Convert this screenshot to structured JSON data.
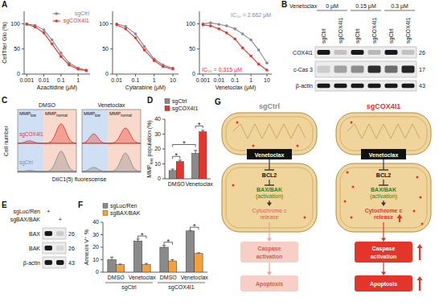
{
  "panel_letters": [
    "A",
    "B",
    "C",
    "D",
    "E",
    "F",
    "G"
  ],
  "chart_data": [
    {
      "type": "line",
      "x_label": "Azacitidine (μM)",
      "y_label": "CellTiter Glo (%)",
      "log": "x",
      "marker": "circle",
      "legend": "top-right",
      "x": [
        0.001,
        0.003,
        0.01,
        0.03,
        0.1,
        0.3,
        1,
        3
      ],
      "series": [
        {
          "name": "sgCtrl",
          "color": "#8a8a8a",
          "values": [
            100,
            97,
            88,
            68,
            42,
            22,
            12,
            8
          ]
        },
        {
          "name": "sgCOX4I1",
          "color": "#e8332a",
          "values": [
            99,
            94,
            82,
            60,
            35,
            18,
            10,
            7
          ]
        }
      ],
      "xlim": [
        0.0007,
        5
      ],
      "xticks": [
        0.001,
        0.01,
        0.1,
        1
      ],
      "ylim": [
        0,
        125
      ],
      "yticks": [
        0,
        50,
        100
      ]
    },
    {
      "type": "line",
      "x_label": "Cytarabine (μM)",
      "log": "x",
      "marker": "circle",
      "x": [
        0.01,
        0.03,
        0.1,
        0.3,
        1,
        3,
        10
      ],
      "series": [
        {
          "color": "#8a8a8a",
          "values": [
            100,
            95,
            80,
            55,
            30,
            18,
            12
          ]
        },
        {
          "color": "#e8332a",
          "values": [
            98,
            90,
            72,
            48,
            27,
            15,
            10
          ]
        }
      ],
      "xlim": [
        0.006,
        20
      ],
      "xticks": [
        0.01,
        0.1,
        1,
        10
      ],
      "ylim": [
        0,
        125
      ],
      "yticks": [
        0,
        50,
        100
      ]
    },
    {
      "type": "line",
      "x_label": "Venetoclax (μM)",
      "log": "x",
      "marker": "circle",
      "x": [
        0.001,
        0.003,
        0.01,
        0.03,
        0.1,
        0.3,
        1,
        3,
        10
      ],
      "series": [
        {
          "color": "#8a8a8a",
          "values": [
            100,
            102,
            99,
            96,
            90,
            80,
            68,
            48,
            22
          ]
        },
        {
          "color": "#e8332a",
          "values": [
            98,
            96,
            90,
            82,
            70,
            52,
            36,
            20,
            8
          ]
        }
      ],
      "xlim": [
        0.0006,
        20
      ],
      "xticks": [
        0.001,
        0.01,
        0.1,
        1,
        10
      ],
      "ylim": [
        0,
        125
      ],
      "yticks": [
        0,
        50,
        100
      ],
      "annotations": [
        {
          "text": "IC₅₀ = 2.662 μM",
          "series": 0
        },
        {
          "text": "IC₅₀ = 0.315 μM",
          "series": 1
        }
      ]
    },
    {
      "type": "bar",
      "y_label": [
        "MMP",
        "low",
        " population (%)"
      ],
      "categories": [
        "DMSO",
        "Venetoclax"
      ],
      "series": [
        {
          "name": "sgCtrl",
          "color": "#8a8a8a",
          "values": [
            5.5,
            17
          ],
          "errors": [
            1,
            2
          ]
        },
        {
          "name": "sgCOX4I1",
          "color": "#e8332a",
          "values": [
            11.5,
            31.5
          ],
          "errors": [
            1,
            1
          ]
        }
      ],
      "ylim": [
        0,
        40
      ],
      "yticks": [
        0,
        10,
        20,
        30,
        40
      ],
      "legend": "top",
      "significance": [
        {
          "text": "*",
          "a": [
            0,
            0
          ],
          "b": [
            0,
            1
          ],
          "y": 15
        },
        {
          "text": "*",
          "a": [
            0,
            0
          ],
          "b": [
            1,
            0
          ],
          "y": 23
        },
        {
          "text": "*",
          "a": [
            1,
            0
          ],
          "b": [
            1,
            1
          ],
          "y": 35.5
        }
      ]
    },
    {
      "type": "bar",
      "y_label": "Annexin V⁺ %",
      "categories": [
        "DMSO",
        "Venetoclax",
        "DMSO",
        "Venetoclax"
      ],
      "groups": [
        {
          "label": "sgCtrl",
          "span": [
            0,
            1
          ]
        },
        {
          "label": "sgCOX4I1",
          "span": [
            2,
            3
          ]
        }
      ],
      "series": [
        {
          "name": "sgLuc/Ren",
          "color": "#8a8a8a",
          "values": [
            10,
            25,
            20,
            33
          ],
          "errors": [
            2,
            1.5,
            1.5,
            0.5
          ]
        },
        {
          "name": "sgBAX/BAK",
          "color": "#f5a03a",
          "values": [
            6,
            6,
            9,
            15
          ],
          "errors": [
            0.5,
            1,
            1,
            0.5
          ]
        }
      ],
      "ylim": [
        0,
        40
      ],
      "yticks": [
        0,
        10,
        20,
        30,
        40
      ],
      "legend": "top",
      "significance": [
        {
          "text": "*",
          "a": [
            1,
            0
          ],
          "b": [
            1,
            1
          ],
          "y": 29
        },
        {
          "text": "*",
          "a": [
            2,
            0
          ],
          "b": [
            2,
            1
          ],
          "y": 24
        },
        {
          "text": "*",
          "a": [
            3,
            0
          ],
          "b": [
            3,
            1
          ],
          "y": 36
        }
      ]
    }
  ],
  "blot_b": {
    "treatment": "Venetoclax",
    "doses": [
      "0 μM",
      "0.15 μM",
      "0.3 μM"
    ],
    "lanes": [
      "sgCtrl",
      "sgCOX4I1",
      "sgCtrl",
      "sgCOX4I1",
      "sgCtrl",
      "sgCOX4I1"
    ],
    "rows": [
      {
        "label": "COX4I1",
        "mw": 26,
        "bands": [
          1,
          0.2,
          1,
          0.25,
          1,
          0.2
        ]
      },
      {
        "label": "c-Cas 3",
        "mw": 17,
        "bands": [
          0.15,
          0.35,
          0.45,
          0.9,
          0.6,
          0.95
        ]
      },
      {
        "label": "β-actin",
        "mw": 43,
        "bands": [
          1,
          1,
          1,
          1,
          1,
          1
        ]
      }
    ]
  },
  "flow_c": {
    "panels": [
      "DMSO",
      "Venetoclax"
    ],
    "gates": [
      [
        "MMP",
        "low"
      ],
      [
        "MMP",
        "normal"
      ]
    ],
    "samples": [
      {
        "name": "sgCOX4I1",
        "color": "#e8332a"
      },
      {
        "name": "sgCtrl",
        "color": "#8a8a8a"
      }
    ],
    "x_label": "DiIC1(5) fluorescense",
    "y_label": "Cell number"
  },
  "blot_e": {
    "conditions": [
      {
        "label": "sgLuc/Ren",
        "marks": [
          "+",
          null
        ]
      },
      {
        "label": "sgBAX/BAK",
        "marks": [
          null,
          "+"
        ]
      }
    ],
    "rows": [
      {
        "label": "BAX",
        "mw": 26,
        "bands": [
          1,
          0.15
        ]
      },
      {
        "label": "BAK",
        "mw": 26,
        "bands": [
          1,
          0.1
        ]
      },
      {
        "label": "β-actin",
        "mw": 43,
        "bands": [
          1,
          1
        ]
      }
    ]
  },
  "diagram_g": {
    "columns": [
      {
        "title": "sgCtrl",
        "color": "#8a8a8a",
        "nodes": {
          "drug": "Venetoclax",
          "target": "BCL2",
          "effector": [
            "BAX/BAK",
            "(activation)"
          ],
          "release": [
            "Cytochrome c",
            "release"
          ],
          "caspase": [
            "Caspase",
            "activation"
          ],
          "outcome": "Apoptosis"
        }
      },
      {
        "title": "sgCOX4I1",
        "color": "#e8332a",
        "nodes": {
          "drug": "Venetoclax",
          "target": "BCL2",
          "effector": [
            "BAX/BAK",
            "(activation)"
          ],
          "release": [
            "Cytochrome c",
            "release"
          ],
          "caspase": [
            "Caspase",
            "activation"
          ],
          "outcome": "Apoptosis"
        }
      }
    ]
  }
}
